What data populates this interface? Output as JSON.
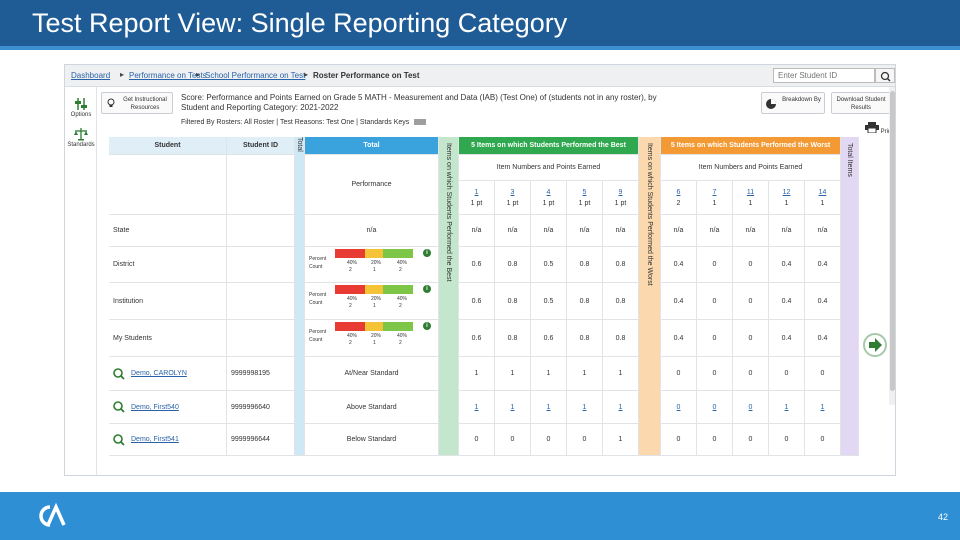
{
  "slide": {
    "title": "Test Report View: Single Reporting Category",
    "page_number": "42"
  },
  "breadcrumbs": [
    "Dashboard",
    "Performance on Tests",
    "School Performance on Test",
    "Roster Performance on Test"
  ],
  "search": {
    "placeholder": "Enter Student ID"
  },
  "left_nav": [
    {
      "label": "Options",
      "icon": "sliders-icon"
    },
    {
      "label": "Standards",
      "icon": "scale-icon"
    }
  ],
  "tools": {
    "instructional": "Get Instructional Resources",
    "breakdown": "Breakdown By",
    "download": "Download Student Results",
    "print": "Print"
  },
  "score_line": "Score: Performance and Points Earned on Grade 5 MATH - Measurement and Data (IAB) (Test One) of (students not in any roster), by Student and Reporting Category: 2021-2022",
  "filter_line": "Filtered By Rosters: All Roster | Test Reasons: Test One | Standards Keys",
  "table": {
    "headers": {
      "student": "Student",
      "student_id": "Student ID",
      "total_vertical": "Total",
      "total": "Total",
      "performance": "Performance",
      "best_title": "5 Items on which Students Performed the Best",
      "best_vertical": "Items on which Students Performed the Best",
      "best_sub": "Item Numbers and Points Earned",
      "worst_title": "5 Items on which Students Performed the Worst",
      "worst_vertical": "Items on which Students Performed the Worst",
      "worst_sub": "Item Numbers and Points Earned",
      "right_vertical": "Total Items"
    },
    "best_items": [
      {
        "num": "1",
        "pts": "1 pt"
      },
      {
        "num": "3",
        "pts": "1 pt"
      },
      {
        "num": "4",
        "pts": "1 pt"
      },
      {
        "num": "5",
        "pts": "1 pt"
      },
      {
        "num": "9",
        "pts": "1 pt"
      }
    ],
    "worst_items": [
      {
        "num": "6",
        "pts": "2"
      },
      {
        "num": "7",
        "pts": "1"
      },
      {
        "num": "11",
        "pts": "1"
      },
      {
        "num": "12",
        "pts": "1"
      },
      {
        "num": "14",
        "pts": "1"
      }
    ],
    "legend": {
      "percent": "Percent",
      "count": "Count",
      "p1": "40%",
      "p2": "20%",
      "p3": "40%",
      "c1": "2",
      "c2": "1",
      "c3": "2"
    },
    "rows": [
      {
        "label": "State",
        "id": "",
        "total": "n/a",
        "type": "agg",
        "bar": false,
        "best": [
          "n/a",
          "n/a",
          "n/a",
          "n/a",
          "n/a"
        ],
        "worst": [
          "n/a",
          "n/a",
          "n/a",
          "n/a",
          "n/a"
        ]
      },
      {
        "label": "District",
        "id": "",
        "total": "",
        "type": "agg",
        "bar": true,
        "best": [
          "0.6",
          "0.8",
          "0.5",
          "0.8",
          "0.8"
        ],
        "worst": [
          "0.4",
          "0",
          "0",
          "0.4",
          "0.4"
        ]
      },
      {
        "label": "Institution",
        "id": "",
        "total": "",
        "type": "agg",
        "bar": true,
        "best": [
          "0.6",
          "0.8",
          "0.5",
          "0.8",
          "0.8"
        ],
        "worst": [
          "0.4",
          "0",
          "0",
          "0.4",
          "0.4"
        ]
      },
      {
        "label": "My Students",
        "id": "",
        "total": "",
        "type": "agg",
        "bar": true,
        "best": [
          "0.6",
          "0.8",
          "0.6",
          "0.8",
          "0.8"
        ],
        "worst": [
          "0.4",
          "0",
          "0",
          "0.4",
          "0.4"
        ]
      },
      {
        "label": "Demo, CAROLYN",
        "id": "9999998195",
        "total": "At/Near Standard",
        "type": "student",
        "bar": false,
        "best": [
          "1",
          "1",
          "1",
          "1",
          "1"
        ],
        "worst": [
          "0",
          "0",
          "0",
          "0",
          "0"
        ]
      },
      {
        "label": "Demo, First540",
        "id": "9999996640",
        "total": "Above Standard",
        "type": "student",
        "bar": false,
        "best": [
          "1",
          "1",
          "1",
          "1",
          "1"
        ],
        "worst": [
          "0",
          "0",
          "0",
          "1",
          "1"
        ]
      },
      {
        "label": "Demo, First541",
        "id": "9999996644",
        "total": "Below Standard",
        "type": "student",
        "bar": false,
        "best": [
          "0",
          "0",
          "0",
          "0",
          "1"
        ],
        "worst": [
          "0",
          "0",
          "0",
          "0",
          "0"
        ]
      }
    ]
  },
  "colors": {
    "title_bar": "#1f5c96",
    "bottom_bar": "#2e8fd4",
    "total_blue": "#3aa3dd",
    "best_green": "#2fa84f",
    "worst_orange": "#f39a35",
    "right_purple": "#c4aee6",
    "bar_red": "#e83b33",
    "bar_yellow": "#f5c436",
    "bar_green": "#7ec648"
  }
}
